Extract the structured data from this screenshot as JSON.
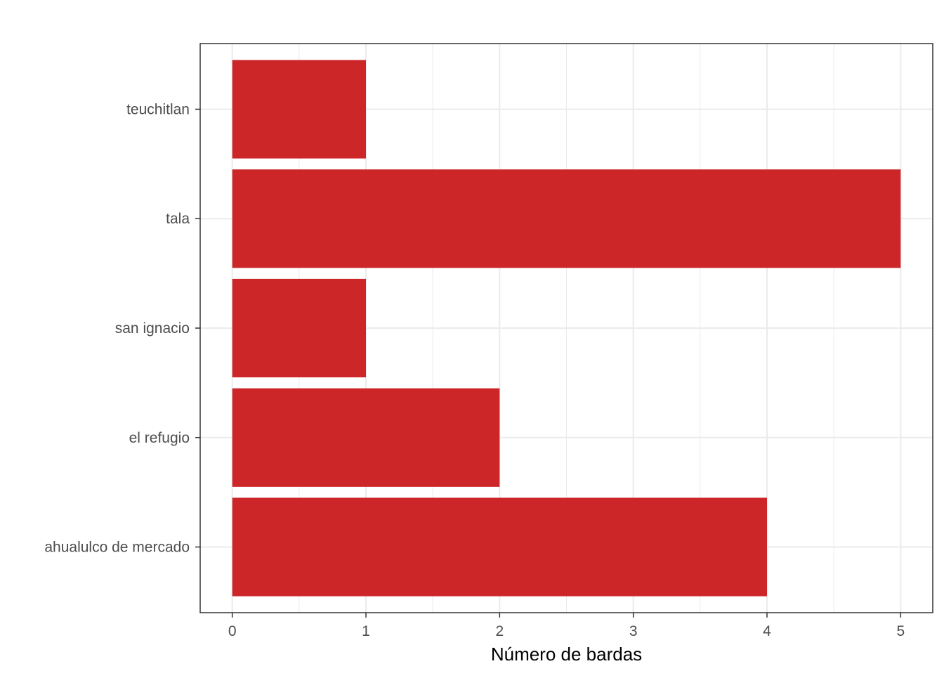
{
  "chart_data": {
    "type": "bar",
    "orientation": "horizontal",
    "categories": [
      "ahualulco de mercado",
      "el refugio",
      "san ignacio",
      "tala",
      "teuchitlan"
    ],
    "values": [
      4,
      2,
      1,
      5,
      1
    ],
    "title": "",
    "xlabel": "Número de bardas",
    "ylabel": "",
    "xlim": [
      -0.24,
      5.24
    ],
    "xticks": [
      "0",
      "1",
      "2",
      "3",
      "4",
      "5"
    ],
    "grid": true,
    "bar_color": "#CC2629",
    "grid_color": "#EBEBEB",
    "axis_text_color": "#4D4D4D",
    "panel_border_color": "#333333"
  }
}
